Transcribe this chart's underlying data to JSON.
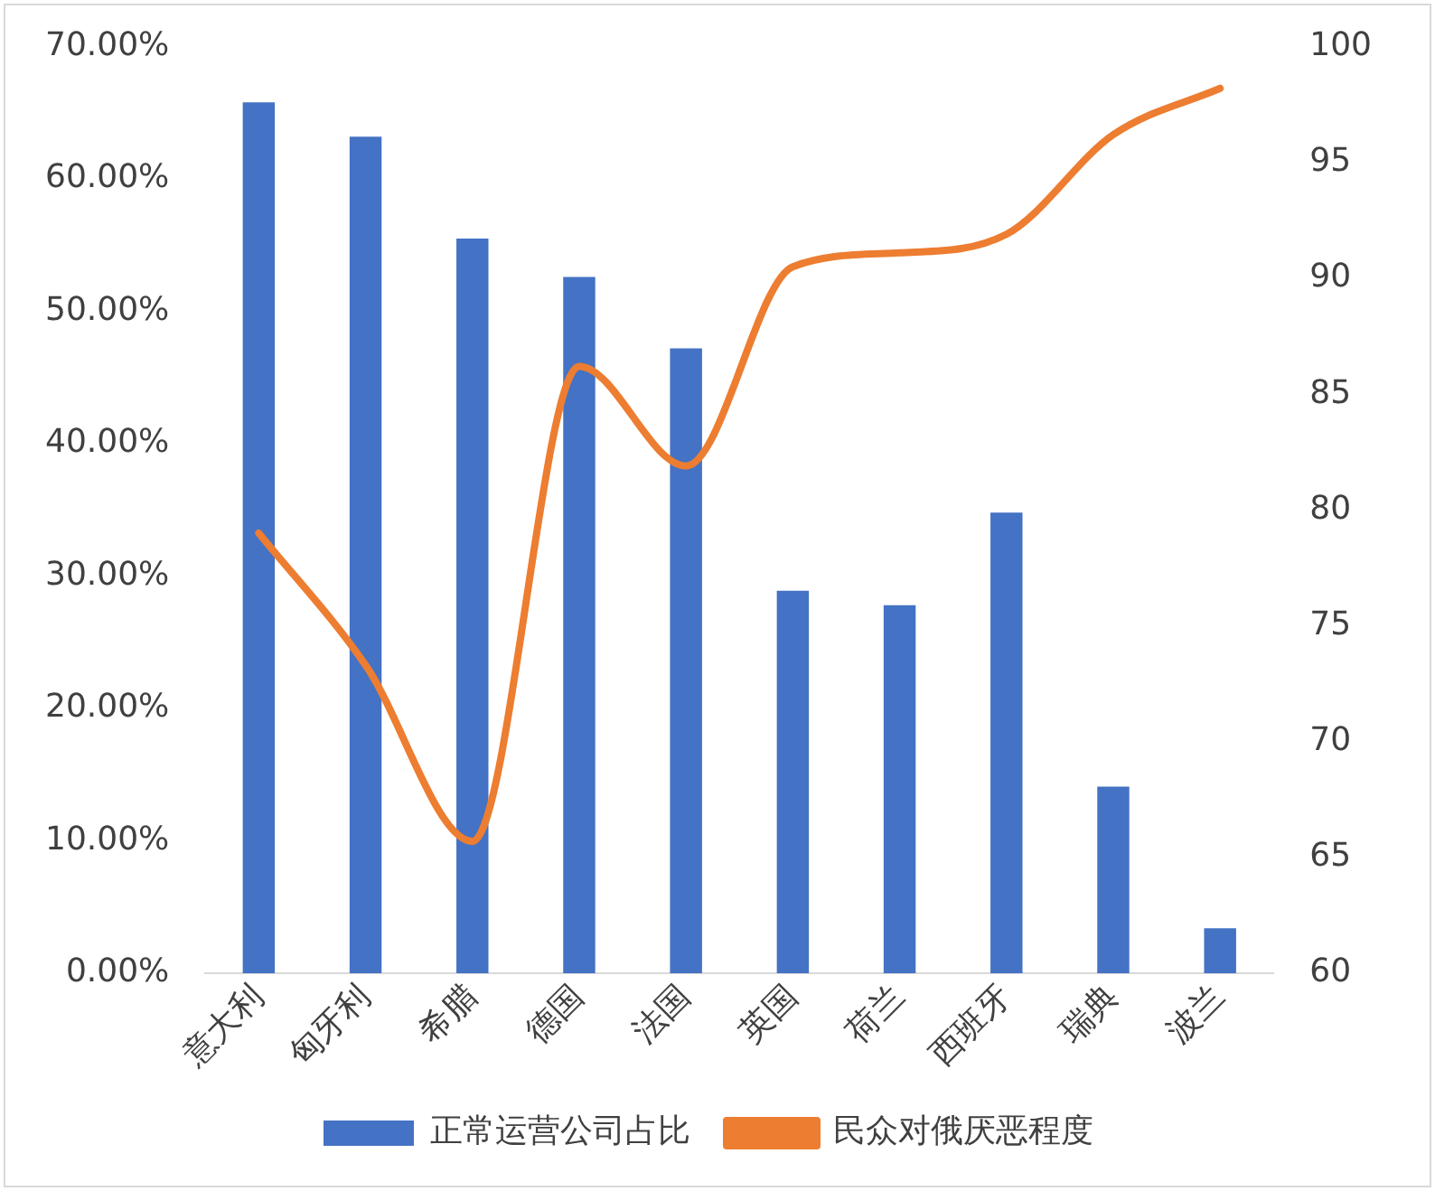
{
  "chart_data": {
    "type": "bar",
    "categories": [
      "意大利",
      "匈牙利",
      "希腊",
      "德国",
      "法国",
      "英国",
      "荷兰",
      "西班牙",
      "瑞典",
      "波兰"
    ],
    "series": [
      {
        "name": "正常运营公司占比",
        "color": "#4472c4",
        "values": [
          65.8,
          63.2,
          55.5,
          52.6,
          47.2,
          28.9,
          27.8,
          34.8,
          14.1,
          3.4
        ]
      },
      {
        "type": "line",
        "name": "民众对俄厌恶程度",
        "color": "#ed7d31",
        "axis": "y2",
        "values": [
          79.0,
          73.3,
          65.7,
          86.2,
          81.9,
          90.5,
          91.1,
          91.9,
          96.2,
          98.2
        ]
      }
    ],
    "ylim": [
      0,
      70
    ],
    "yticks": [
      {
        "value": 0,
        "label": "0.00%"
      },
      {
        "value": 10,
        "label": "10.00%"
      },
      {
        "value": 20,
        "label": "20.00%"
      },
      {
        "value": 30,
        "label": "30.00%"
      },
      {
        "value": 40,
        "label": "40.00%"
      },
      {
        "value": 50,
        "label": "50.00%"
      },
      {
        "value": 60,
        "label": "60.00%"
      },
      {
        "value": 70,
        "label": "70.00%"
      }
    ],
    "y2lim": [
      60,
      100
    ],
    "y2ticks": [
      60,
      65,
      70,
      75,
      80,
      85,
      90,
      95,
      100
    ],
    "legend": "bottom",
    "marker": "none"
  }
}
